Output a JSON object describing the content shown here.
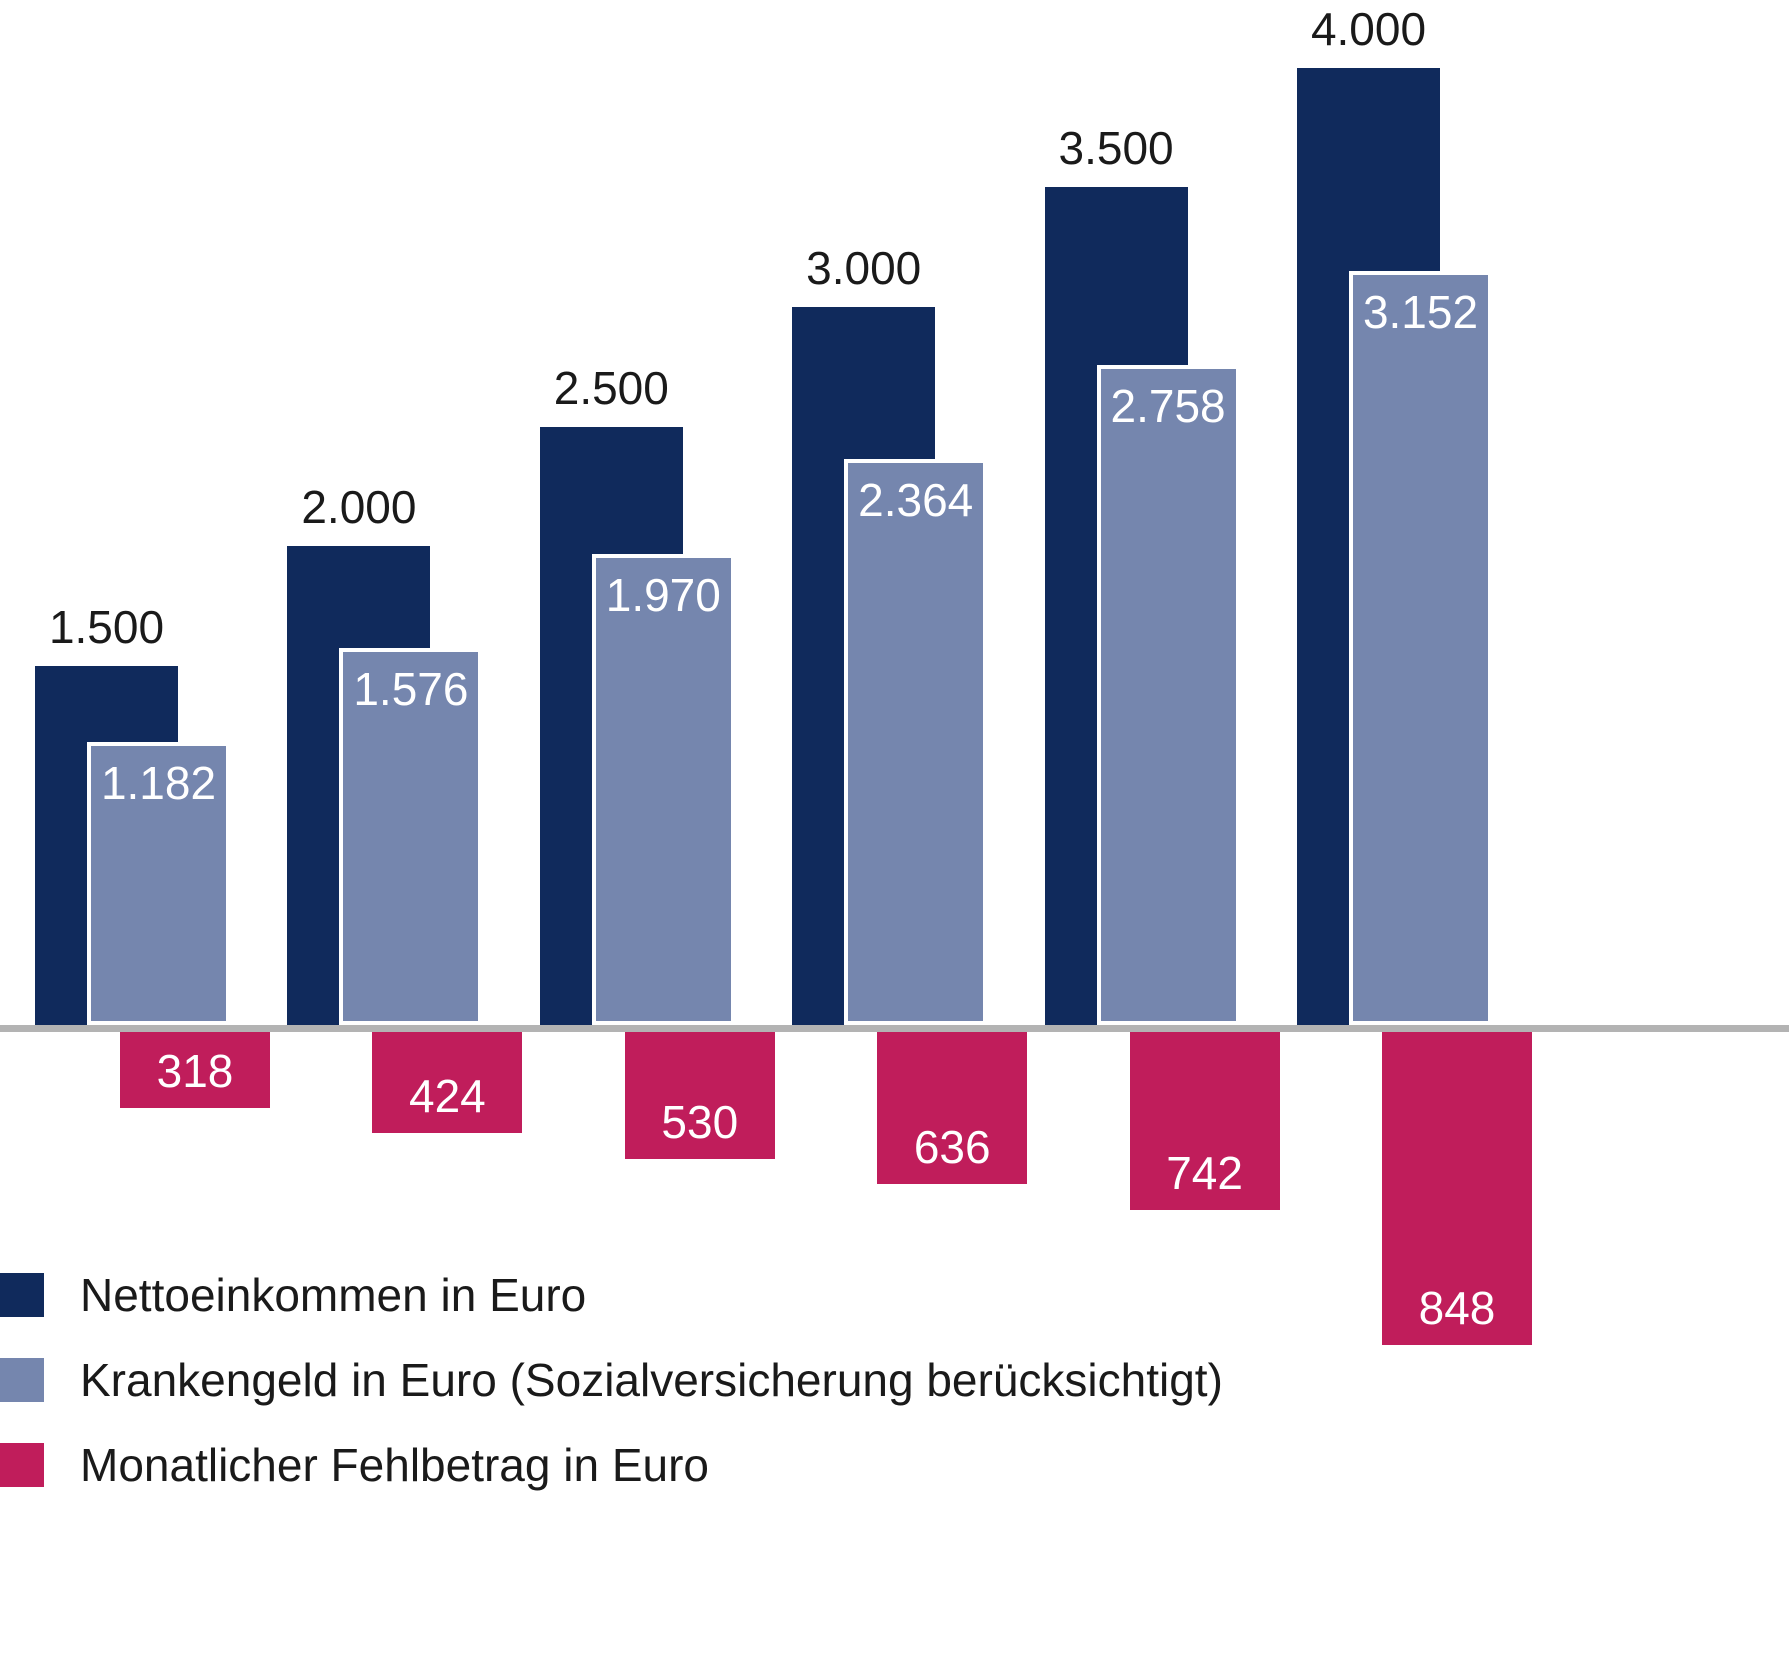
{
  "chart_data": {
    "type": "bar",
    "title": "",
    "grid": false,
    "legend_position": "bottom-left",
    "baseline_value": 0,
    "baseline_color": "#b3b3b3",
    "background_color": "#ffffff",
    "ylim": [
      -900,
      4200
    ],
    "categories": [
      "1.500",
      "2.000",
      "2.500",
      "3.000",
      "3.500",
      "4.000"
    ],
    "series": [
      {
        "name": "Nettoeinkommen in Euro",
        "color": "#102a5c",
        "values": [
          1500,
          2000,
          2500,
          3000,
          3500,
          4000
        ],
        "labels": [
          "1.500",
          "2.000",
          "2.500",
          "3.000",
          "3.500",
          "4.000"
        ],
        "label_position": "above",
        "label_color": "#1a1a1a",
        "direction": "above-baseline"
      },
      {
        "name": "Krankengeld in Euro (Sozialversicherung berücksichtigt)",
        "color": "#7586ae",
        "border_color": "#ffffff",
        "values": [
          1182,
          1576,
          1970,
          2364,
          2758,
          3152
        ],
        "labels": [
          "1.182",
          "1.576",
          "1.970",
          "2.364",
          "2.758",
          "3.152"
        ],
        "label_position": "inside-top",
        "label_color": "#ffffff",
        "direction": "above-baseline"
      },
      {
        "name": "Monatlicher Fehlbetrag in Euro",
        "color": "#c01d5b",
        "values": [
          318,
          424,
          530,
          636,
          742,
          848
        ],
        "labels": [
          "318",
          "424",
          "530",
          "636",
          "742",
          "848"
        ],
        "label_position": "inside-bottom",
        "label_color": "#ffffff",
        "direction": "below-baseline"
      }
    ]
  },
  "legend": {
    "items": [
      {
        "label": "Nettoeinkommen in Euro",
        "color": "#102a5c"
      },
      {
        "label": "Krankengeld in Euro (Sozialversicherung berücksichtigt)",
        "color": "#7586ae"
      },
      {
        "label": "Monatlicher Fehlbetrag in Euro",
        "color": "#c01d5b"
      }
    ]
  }
}
